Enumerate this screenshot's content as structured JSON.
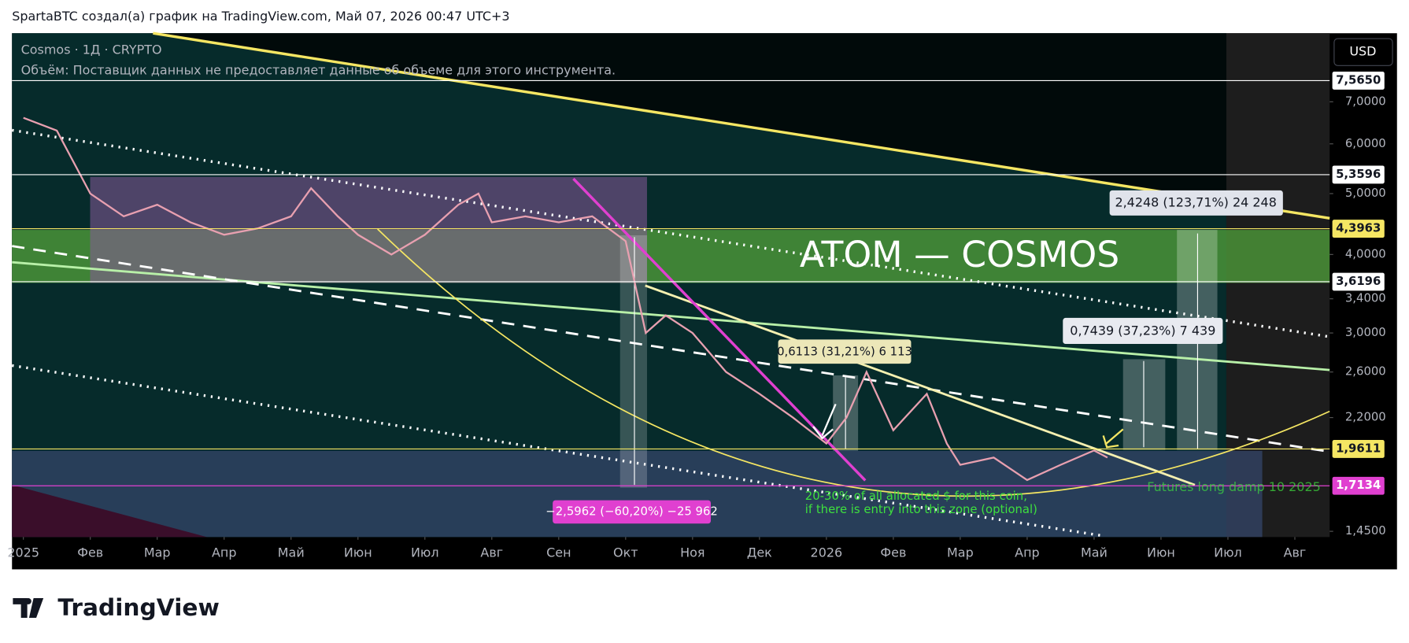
{
  "header": "SpartaBTC создал(а) график на TradingView.com, Май 07, 2026 00:47 UTC+3",
  "symbol": "Cosmos · 1Д · CRYPTO",
  "volume_note": "Объём: Поставщик данных не предоставляет данные об объеме для этого инструмента.",
  "currency": "USD",
  "logo": "TradingView",
  "chart_data": {
    "type": "line",
    "title": "ATOM — COSMOS",
    "log_scale": true,
    "color": "#e8a0b0",
    "x": [
      0,
      0.5,
      1,
      1.5,
      2,
      2.5,
      3,
      3.5,
      4,
      4.3,
      4.7,
      5,
      5.5,
      6,
      6.5,
      6.8,
      7,
      7.5,
      8,
      8.5,
      9,
      9.3,
      9.6,
      10,
      10.5,
      11,
      11.5,
      12,
      12.3,
      12.6,
      13,
      13.5,
      13.8,
      14,
      14.5,
      15,
      15.5,
      16,
      16.2
    ],
    "values": [
      6.6,
      6.3,
      5.0,
      4.6,
      4.8,
      4.5,
      4.3,
      4.4,
      4.6,
      5.1,
      4.6,
      4.3,
      4.0,
      4.3,
      4.8,
      5.0,
      4.5,
      4.6,
      4.5,
      4.6,
      4.2,
      3.0,
      3.2,
      3.0,
      2.6,
      2.4,
      2.2,
      2.0,
      2.2,
      2.6,
      2.1,
      2.4,
      2.0,
      1.85,
      1.9,
      1.75,
      1.85,
      1.95,
      1.9
    ],
    "xlim": [
      -0.17,
      19.52
    ],
    "xticks": [
      {
        "value": 0,
        "label": "2025"
      },
      {
        "value": 1,
        "label": "Фев"
      },
      {
        "value": 2,
        "label": "Мар"
      },
      {
        "value": 3,
        "label": "Апр"
      },
      {
        "value": 4,
        "label": "Май"
      },
      {
        "value": 5,
        "label": "Июн"
      },
      {
        "value": 6,
        "label": "Июл"
      },
      {
        "value": 7,
        "label": "Авг"
      },
      {
        "value": 8,
        "label": "Сен"
      },
      {
        "value": 9,
        "label": "Окт"
      },
      {
        "value": 10,
        "label": "Ноя"
      },
      {
        "value": 11,
        "label": "Дек"
      },
      {
        "value": 12,
        "label": "2026"
      },
      {
        "value": 13,
        "label": "Фев"
      },
      {
        "value": 14,
        "label": "Мар"
      },
      {
        "value": 15,
        "label": "Апр"
      },
      {
        "value": 16,
        "label": "Май"
      },
      {
        "value": 17,
        "label": "Июн"
      },
      {
        "value": 18,
        "label": "Июл"
      },
      {
        "value": 19,
        "label": "Авг"
      }
    ],
    "ylim": [
      1.42,
      9.0
    ],
    "yticks": [
      {
        "value": 7,
        "label": "7,0000"
      },
      {
        "value": 6,
        "label": "6,0000"
      },
      {
        "value": 5,
        "label": "5,0000"
      },
      {
        "value": 4,
        "label": "4,0000"
      },
      {
        "value": 3.4,
        "label": "3,4000"
      },
      {
        "value": 3,
        "label": "3,0000"
      },
      {
        "value": 2.6,
        "label": "2,6000"
      },
      {
        "value": 2.2,
        "label": "2,2000"
      },
      {
        "value": 1.45,
        "label": "1,4500"
      }
    ],
    "price_labels": [
      {
        "value": 7.565,
        "label": "7,5650",
        "color": "#ffffff"
      },
      {
        "value": 5.3596,
        "label": "5,3596",
        "color": "#ffffff"
      },
      {
        "value": 4.3963,
        "label": "4,3963",
        "color": "#f5e663"
      },
      {
        "value": 3.6196,
        "label": "3,6196",
        "color": "#ffffff"
      },
      {
        "value": 1.9611,
        "label": "1,9611",
        "color": "#f5e663"
      },
      {
        "value": 1.7134,
        "label": "1,7134",
        "color": "#e040d0"
      }
    ],
    "annotations": [
      "2,4248 (123,71%) 24 248",
      "0,7439 (37,23%) 7 439",
      "0,6113 (31,21%) 6 113",
      "−2,5962 (−60,20%) −25 962",
      "20-30% of all allocated $ for this coin,",
      "if there is entry into this zone (optional)",
      "Futures long damp 10 2025"
    ]
  }
}
